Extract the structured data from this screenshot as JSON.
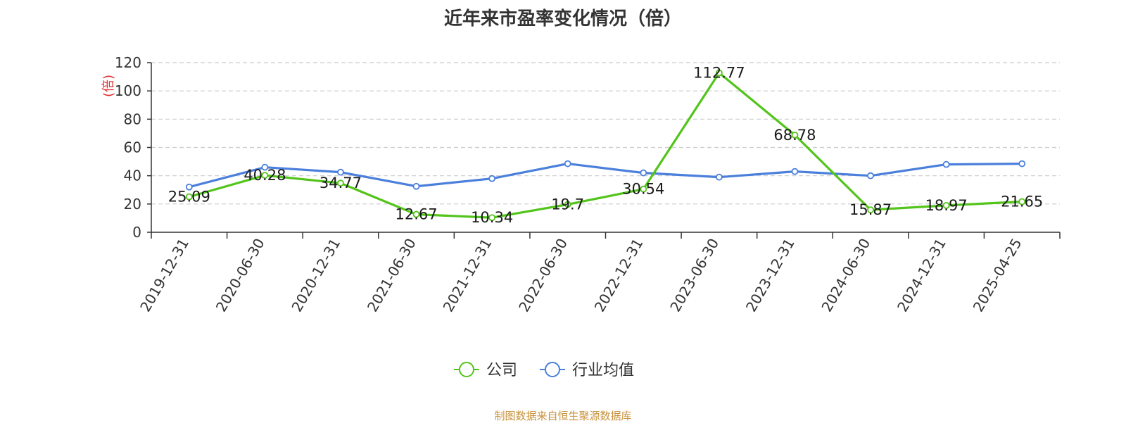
{
  "chart_data": {
    "type": "line",
    "title": "近年来市盈率变化情况（倍）",
    "ylabel": "(倍)",
    "xlabel": "",
    "categories": [
      "2019-12-31",
      "2020-06-30",
      "2020-12-31",
      "2021-06-30",
      "2021-12-31",
      "2022-06-30",
      "2022-12-31",
      "2023-06-30",
      "2023-12-31",
      "2024-06-30",
      "2024-12-31",
      "2025-04-25"
    ],
    "ylim": [
      0,
      120
    ],
    "yticks": [
      0,
      20,
      40,
      60,
      80,
      100,
      120
    ],
    "grid": true,
    "legend_position": "bottom",
    "series": [
      {
        "name": "公司",
        "color": "#52c41a",
        "show_labels": true,
        "values": [
          25.09,
          40.28,
          34.77,
          12.67,
          10.34,
          19.7,
          30.54,
          112.77,
          68.78,
          15.87,
          18.97,
          21.65
        ],
        "labels": [
          "25.09",
          "40.28",
          "34.77",
          "12.67",
          "10.34",
          "19.7",
          "30.54",
          "112.77",
          "68.78",
          "15.87",
          "18.97",
          "21.65"
        ]
      },
      {
        "name": "行业均值",
        "color": "#4a7fdc",
        "show_labels": false,
        "values": [
          32.0,
          46.0,
          42.5,
          32.5,
          38.0,
          48.5,
          42.0,
          39.0,
          43.0,
          40.0,
          48.0,
          48.5
        ]
      }
    ]
  },
  "source": "制图数据来自恒生聚源数据库"
}
